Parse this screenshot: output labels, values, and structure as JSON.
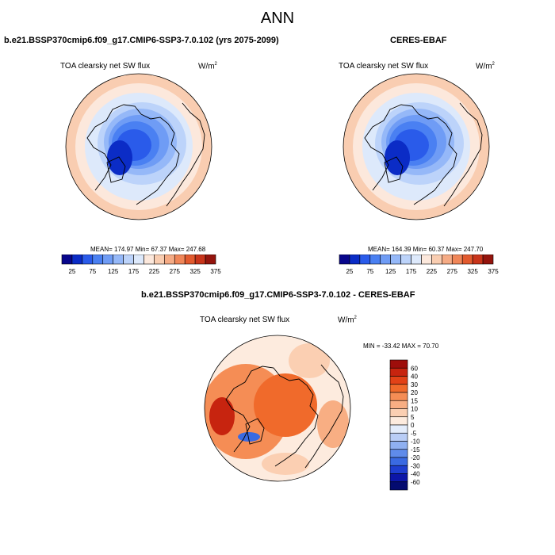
{
  "title": "ANN",
  "panels": [
    {
      "title": "b.e21.BSSP370cmip6.f09_g17.CMIP6-SSP3-7.0.102 (yrs 2075-2099)",
      "variable": "TOA clearsky net SW flux",
      "units": "W/m",
      "units_exp": "2",
      "stats_text": "MEAN= 174.97  Min=  67.37  Max= 247.68"
    },
    {
      "title": "CERES-EBAF",
      "variable": "TOA clearsky net SW flux",
      "units": "W/m",
      "units_exp": "2",
      "stats_text": "MEAN= 164.39  Min=  60.37  Max= 247.70"
    },
    {
      "title": "b.e21.BSSP370cmip6.f09_g17.CMIP6-SSP3-7.0.102 - CERES-EBAF",
      "variable": "TOA clearsky net SW flux",
      "units": "W/m",
      "units_exp": "2",
      "stats_text": "MIN = -33.42 MAX =  70.70"
    }
  ],
  "chart_data": [
    {
      "type": "heatmap",
      "projection": "north-polar-stereographic",
      "colorbar": {
        "orientation": "horizontal",
        "tick_labels": [
          "25",
          "75",
          "125",
          "175",
          "225",
          "275",
          "325",
          "375"
        ],
        "colors": [
          "#08068c",
          "#0b2cc6",
          "#2a5bea",
          "#4a80f2",
          "#6f9cf5",
          "#95b8f8",
          "#bcd3fa",
          "#dde9fb",
          "#fce8dc",
          "#f9cdb1",
          "#f5ab85",
          "#f08658",
          "#e25a2e",
          "#c8341a",
          "#94140d"
        ]
      },
      "stats": {
        "mean": 174.97,
        "min": 67.37,
        "max": 247.68
      }
    },
    {
      "type": "heatmap",
      "projection": "north-polar-stereographic",
      "colorbar": {
        "orientation": "horizontal",
        "tick_labels": [
          "25",
          "75",
          "125",
          "175",
          "225",
          "275",
          "325",
          "375"
        ],
        "colors": [
          "#08068c",
          "#0b2cc6",
          "#2a5bea",
          "#4a80f2",
          "#6f9cf5",
          "#95b8f8",
          "#bcd3fa",
          "#dde9fb",
          "#fce8dc",
          "#f9cdb1",
          "#f5ab85",
          "#f08658",
          "#e25a2e",
          "#c8341a",
          "#94140d"
        ]
      },
      "stats": {
        "mean": 164.39,
        "min": 60.37,
        "max": 247.7
      }
    },
    {
      "type": "heatmap",
      "projection": "north-polar-stereographic",
      "colorbar": {
        "orientation": "vertical",
        "tick_labels": [
          "60",
          "40",
          "30",
          "20",
          "15",
          "10",
          "5",
          "0",
          "-5",
          "-10",
          "-15",
          "-20",
          "-30",
          "-40",
          "-60"
        ],
        "colors": [
          "#9e0e0b",
          "#c7240f",
          "#e24217",
          "#f06a2b",
          "#f58d55",
          "#f8ae83",
          "#fbcfb2",
          "#fdebde",
          "#e3ecfb",
          "#b9cdf6",
          "#8fb0f1",
          "#5f8bea",
          "#3a6ae2",
          "#1e3ed0",
          "#0c16a8",
          "#040b70"
        ]
      },
      "stats": {
        "min": -33.42,
        "max": 70.7
      }
    }
  ]
}
